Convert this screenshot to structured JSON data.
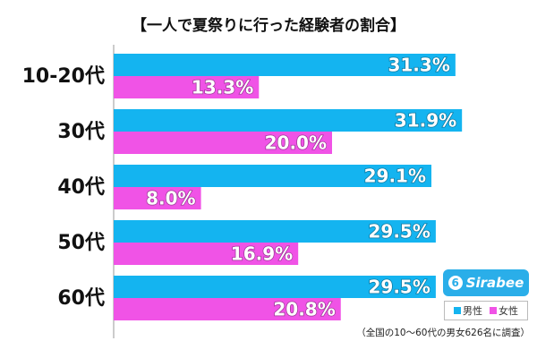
{
  "chart_data": {
    "type": "bar",
    "orientation": "horizontal",
    "title": "【一人で夏祭りに行った経験者の割合】",
    "categories": [
      "10-20代",
      "30代",
      "40代",
      "50代",
      "60代"
    ],
    "series": [
      {
        "name": "男性",
        "color": "#14b4f0",
        "values": [
          31.3,
          31.9,
          29.1,
          29.5,
          29.5
        ]
      },
      {
        "name": "女性",
        "color": "#f053e6",
        "values": [
          13.3,
          20.0,
          8.0,
          16.9,
          20.8
        ]
      }
    ],
    "value_suffix": "%",
    "xlim": [
      0,
      36
    ],
    "grid": false,
    "legend_position": "bottom-right"
  },
  "logo_text": "Sirabee",
  "logo_mark": "6",
  "footnote": "（全国の10～60代の男女626名に調査）"
}
